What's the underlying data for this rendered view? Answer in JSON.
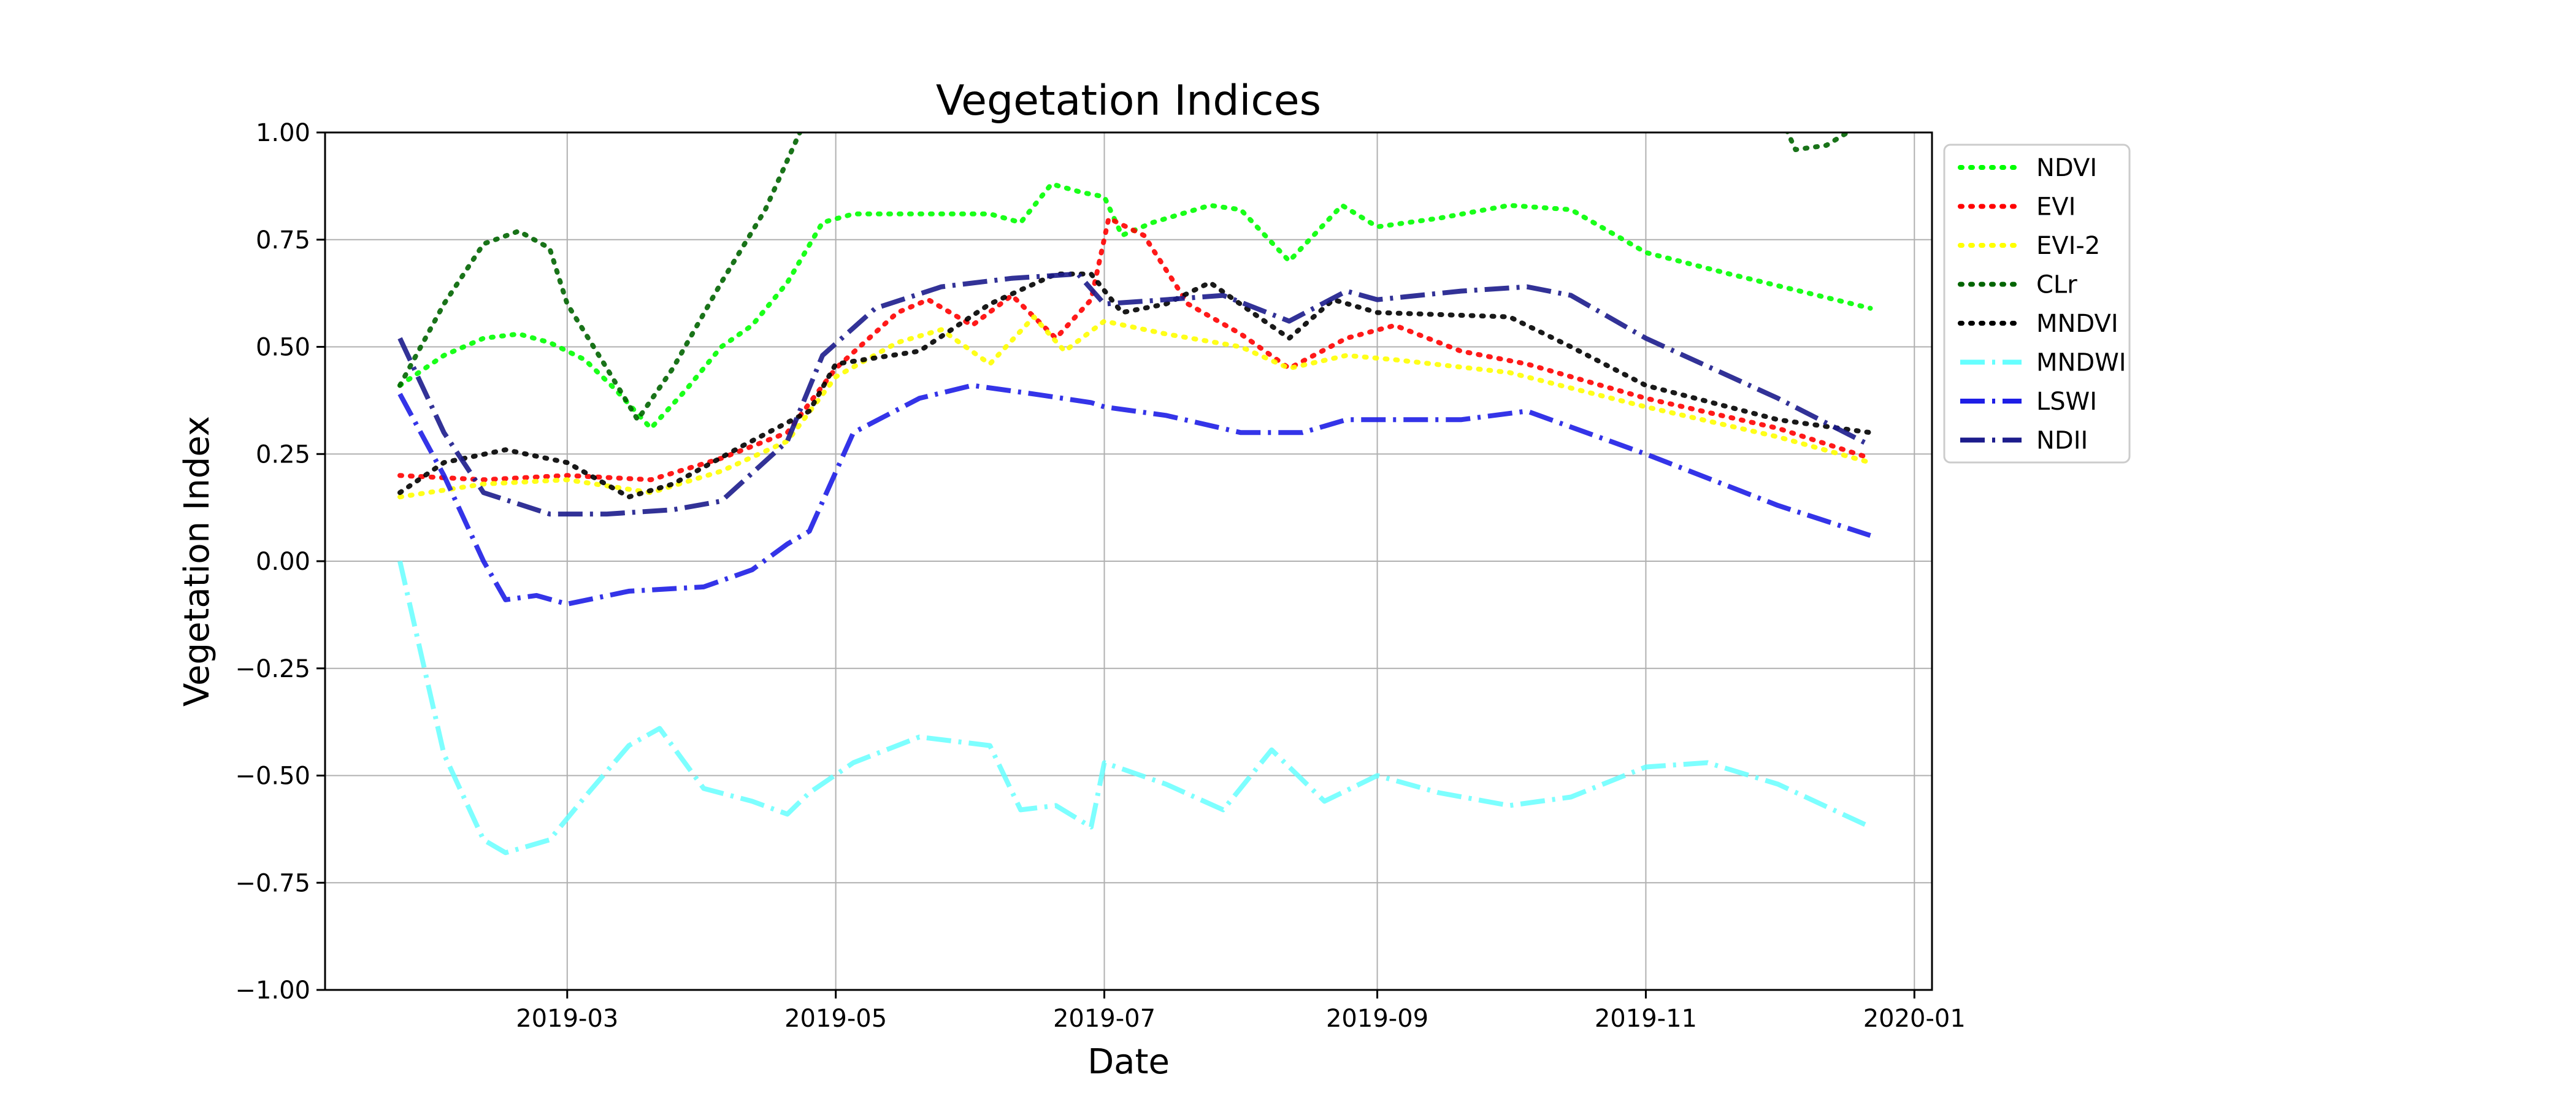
{
  "chart_data": {
    "type": "line",
    "title": "Vegetation Indices",
    "xlabel": "Date",
    "ylabel": "Vegetation Index",
    "xlim": [
      "2019-01-05",
      "2020-01-05"
    ],
    "ylim": [
      -1.0,
      1.0
    ],
    "x_ticks": [
      "2019-03",
      "2019-05",
      "2019-07",
      "2019-09",
      "2019-11",
      "2020-01"
    ],
    "y_ticks": [
      "−1.00",
      "−0.75",
      "−0.50",
      "−0.25",
      "0.00",
      "0.25",
      "0.50",
      "0.75",
      "1.00"
    ],
    "grid": true,
    "legend_position": "outside-right-top",
    "series": [
      {
        "name": "NDVI",
        "color": "#00ff00",
        "style": "dotted",
        "points": [
          [
            "2019-01-22",
            0.41
          ],
          [
            "2019-02-01",
            0.48
          ],
          [
            "2019-02-10",
            0.52
          ],
          [
            "2019-02-18",
            0.53
          ],
          [
            "2019-02-25",
            0.51
          ],
          [
            "2019-03-05",
            0.47
          ],
          [
            "2019-03-12",
            0.4
          ],
          [
            "2019-03-20",
            0.31
          ],
          [
            "2019-03-28",
            0.4
          ],
          [
            "2019-04-05",
            0.5
          ],
          [
            "2019-04-12",
            0.55
          ],
          [
            "2019-04-20",
            0.65
          ],
          [
            "2019-04-28",
            0.79
          ],
          [
            "2019-05-05",
            0.81
          ],
          [
            "2019-05-20",
            0.81
          ],
          [
            "2019-06-05",
            0.81
          ],
          [
            "2019-06-12",
            0.79
          ],
          [
            "2019-06-19",
            0.88
          ],
          [
            "2019-06-26",
            0.86
          ],
          [
            "2019-07-01",
            0.85
          ],
          [
            "2019-07-05",
            0.76
          ],
          [
            "2019-07-12",
            0.79
          ],
          [
            "2019-07-25",
            0.83
          ],
          [
            "2019-08-01",
            0.82
          ],
          [
            "2019-08-12",
            0.7
          ],
          [
            "2019-08-24",
            0.83
          ],
          [
            "2019-09-01",
            0.78
          ],
          [
            "2019-09-15",
            0.8
          ],
          [
            "2019-10-01",
            0.83
          ],
          [
            "2019-10-15",
            0.82
          ],
          [
            "2019-11-01",
            0.72
          ],
          [
            "2019-11-20",
            0.67
          ],
          [
            "2019-12-10",
            0.62
          ],
          [
            "2019-12-22",
            0.59
          ]
        ]
      },
      {
        "name": "EVI",
        "color": "#ff0000",
        "style": "dotted",
        "points": [
          [
            "2019-01-22",
            0.2
          ],
          [
            "2019-02-10",
            0.19
          ],
          [
            "2019-03-01",
            0.2
          ],
          [
            "2019-03-20",
            0.19
          ],
          [
            "2019-04-05",
            0.24
          ],
          [
            "2019-04-20",
            0.3
          ],
          [
            "2019-05-01",
            0.45
          ],
          [
            "2019-05-15",
            0.58
          ],
          [
            "2019-05-22",
            0.61
          ],
          [
            "2019-06-01",
            0.55
          ],
          [
            "2019-06-10",
            0.62
          ],
          [
            "2019-06-20",
            0.52
          ],
          [
            "2019-06-28",
            0.61
          ],
          [
            "2019-07-02",
            0.8
          ],
          [
            "2019-07-10",
            0.76
          ],
          [
            "2019-07-20",
            0.6
          ],
          [
            "2019-08-01",
            0.53
          ],
          [
            "2019-08-12",
            0.45
          ],
          [
            "2019-08-25",
            0.52
          ],
          [
            "2019-09-05",
            0.55
          ],
          [
            "2019-09-20",
            0.49
          ],
          [
            "2019-10-05",
            0.46
          ],
          [
            "2019-11-01",
            0.38
          ],
          [
            "2019-12-01",
            0.31
          ],
          [
            "2019-12-22",
            0.24
          ]
        ]
      },
      {
        "name": "EVI-2",
        "color": "#ffff00",
        "style": "dotted",
        "points": [
          [
            "2019-01-22",
            0.15
          ],
          [
            "2019-02-10",
            0.18
          ],
          [
            "2019-03-01",
            0.19
          ],
          [
            "2019-03-20",
            0.16
          ],
          [
            "2019-04-05",
            0.21
          ],
          [
            "2019-04-20",
            0.28
          ],
          [
            "2019-05-01",
            0.43
          ],
          [
            "2019-05-15",
            0.51
          ],
          [
            "2019-05-25",
            0.54
          ],
          [
            "2019-06-05",
            0.46
          ],
          [
            "2019-06-15",
            0.57
          ],
          [
            "2019-06-22",
            0.49
          ],
          [
            "2019-07-01",
            0.56
          ],
          [
            "2019-07-15",
            0.53
          ],
          [
            "2019-08-01",
            0.5
          ],
          [
            "2019-08-12",
            0.45
          ],
          [
            "2019-08-25",
            0.48
          ],
          [
            "2019-09-05",
            0.47
          ],
          [
            "2019-10-01",
            0.44
          ],
          [
            "2019-11-01",
            0.36
          ],
          [
            "2019-12-01",
            0.29
          ],
          [
            "2019-12-22",
            0.23
          ]
        ]
      },
      {
        "name": "CLr",
        "color": "#006400",
        "style": "dotted",
        "points": [
          [
            "2019-01-22",
            0.41
          ],
          [
            "2019-02-01",
            0.6
          ],
          [
            "2019-02-10",
            0.74
          ],
          [
            "2019-02-18",
            0.77
          ],
          [
            "2019-02-25",
            0.73
          ],
          [
            "2019-03-01",
            0.6
          ],
          [
            "2019-03-10",
            0.45
          ],
          [
            "2019-03-17",
            0.33
          ],
          [
            "2019-03-25",
            0.45
          ],
          [
            "2019-04-05",
            0.65
          ],
          [
            "2019-04-15",
            0.82
          ],
          [
            "2019-04-25",
            1.05
          ],
          [
            "2019-12-01",
            1.05
          ],
          [
            "2019-12-05",
            0.96
          ],
          [
            "2019-12-12",
            0.97
          ],
          [
            "2019-12-20",
            1.02
          ]
        ]
      },
      {
        "name": "MNDVI",
        "color": "#000000",
        "style": "dotted",
        "points": [
          [
            "2019-01-22",
            0.16
          ],
          [
            "2019-02-01",
            0.23
          ],
          [
            "2019-02-15",
            0.26
          ],
          [
            "2019-03-01",
            0.23
          ],
          [
            "2019-03-15",
            0.15
          ],
          [
            "2019-03-25",
            0.18
          ],
          [
            "2019-04-10",
            0.27
          ],
          [
            "2019-04-25",
            0.35
          ],
          [
            "2019-05-01",
            0.46
          ],
          [
            "2019-05-20",
            0.49
          ],
          [
            "2019-06-05",
            0.6
          ],
          [
            "2019-06-20",
            0.67
          ],
          [
            "2019-06-28",
            0.67
          ],
          [
            "2019-07-05",
            0.58
          ],
          [
            "2019-07-15",
            0.6
          ],
          [
            "2019-07-25",
            0.65
          ],
          [
            "2019-08-05",
            0.57
          ],
          [
            "2019-08-12",
            0.52
          ],
          [
            "2019-08-22",
            0.61
          ],
          [
            "2019-09-01",
            0.58
          ],
          [
            "2019-10-01",
            0.57
          ],
          [
            "2019-10-15",
            0.5
          ],
          [
            "2019-11-01",
            0.41
          ],
          [
            "2019-12-01",
            0.33
          ],
          [
            "2019-12-22",
            0.3
          ]
        ]
      },
      {
        "name": "MNDWI",
        "color": "#66ffff",
        "style": "dashdot",
        "points": [
          [
            "2019-01-22",
            0.0
          ],
          [
            "2019-02-01",
            -0.45
          ],
          [
            "2019-02-10",
            -0.65
          ],
          [
            "2019-02-15",
            -0.68
          ],
          [
            "2019-02-25",
            -0.65
          ],
          [
            "2019-03-05",
            -0.55
          ],
          [
            "2019-03-15",
            -0.43
          ],
          [
            "2019-03-22",
            -0.39
          ],
          [
            "2019-04-01",
            -0.53
          ],
          [
            "2019-04-12",
            -0.56
          ],
          [
            "2019-04-20",
            -0.59
          ],
          [
            "2019-04-25",
            -0.54
          ],
          [
            "2019-05-05",
            -0.47
          ],
          [
            "2019-05-20",
            -0.41
          ],
          [
            "2019-06-05",
            -0.43
          ],
          [
            "2019-06-12",
            -0.58
          ],
          [
            "2019-06-20",
            -0.57
          ],
          [
            "2019-06-28",
            -0.62
          ],
          [
            "2019-07-01",
            -0.47
          ],
          [
            "2019-07-15",
            -0.52
          ],
          [
            "2019-07-28",
            -0.58
          ],
          [
            "2019-08-08",
            -0.44
          ],
          [
            "2019-08-20",
            -0.56
          ],
          [
            "2019-09-01",
            -0.5
          ],
          [
            "2019-09-15",
            -0.54
          ],
          [
            "2019-10-01",
            -0.57
          ],
          [
            "2019-10-15",
            -0.55
          ],
          [
            "2019-11-01",
            -0.48
          ],
          [
            "2019-11-15",
            -0.47
          ],
          [
            "2019-12-01",
            -0.52
          ],
          [
            "2019-12-22",
            -0.62
          ]
        ]
      },
      {
        "name": "LSWI",
        "color": "#1e1ee6",
        "style": "dashdot",
        "points": [
          [
            "2019-01-22",
            0.39
          ],
          [
            "2019-02-01",
            0.2
          ],
          [
            "2019-02-10",
            0.0
          ],
          [
            "2019-02-15",
            -0.09
          ],
          [
            "2019-02-22",
            -0.08
          ],
          [
            "2019-03-01",
            -0.1
          ],
          [
            "2019-03-15",
            -0.07
          ],
          [
            "2019-04-01",
            -0.06
          ],
          [
            "2019-04-12",
            -0.02
          ],
          [
            "2019-04-20",
            0.04
          ],
          [
            "2019-04-25",
            0.07
          ],
          [
            "2019-05-05",
            0.3
          ],
          [
            "2019-05-20",
            0.38
          ],
          [
            "2019-06-01",
            0.41
          ],
          [
            "2019-06-15",
            0.39
          ],
          [
            "2019-06-28",
            0.37
          ],
          [
            "2019-07-01",
            0.36
          ],
          [
            "2019-07-15",
            0.34
          ],
          [
            "2019-08-01",
            0.3
          ],
          [
            "2019-08-15",
            0.3
          ],
          [
            "2019-08-25",
            0.33
          ],
          [
            "2019-09-01",
            0.33
          ],
          [
            "2019-09-20",
            0.33
          ],
          [
            "2019-10-05",
            0.35
          ],
          [
            "2019-11-01",
            0.25
          ],
          [
            "2019-12-01",
            0.13
          ],
          [
            "2019-12-22",
            0.06
          ]
        ]
      },
      {
        "name": "NDII",
        "color": "#1c1c8c",
        "style": "dashdot",
        "points": [
          [
            "2019-01-22",
            0.52
          ],
          [
            "2019-02-01",
            0.3
          ],
          [
            "2019-02-10",
            0.16
          ],
          [
            "2019-02-25",
            0.11
          ],
          [
            "2019-03-10",
            0.11
          ],
          [
            "2019-03-25",
            0.12
          ],
          [
            "2019-04-05",
            0.14
          ],
          [
            "2019-04-20",
            0.28
          ],
          [
            "2019-04-28",
            0.48
          ],
          [
            "2019-05-10",
            0.59
          ],
          [
            "2019-05-25",
            0.64
          ],
          [
            "2019-06-10",
            0.66
          ],
          [
            "2019-06-25",
            0.67
          ],
          [
            "2019-07-01",
            0.6
          ],
          [
            "2019-07-15",
            0.61
          ],
          [
            "2019-07-28",
            0.62
          ],
          [
            "2019-08-12",
            0.56
          ],
          [
            "2019-08-25",
            0.63
          ],
          [
            "2019-09-01",
            0.61
          ],
          [
            "2019-09-20",
            0.63
          ],
          [
            "2019-10-05",
            0.64
          ],
          [
            "2019-10-15",
            0.62
          ],
          [
            "2019-11-01",
            0.52
          ],
          [
            "2019-12-01",
            0.38
          ],
          [
            "2019-12-22",
            0.27
          ]
        ]
      }
    ]
  }
}
